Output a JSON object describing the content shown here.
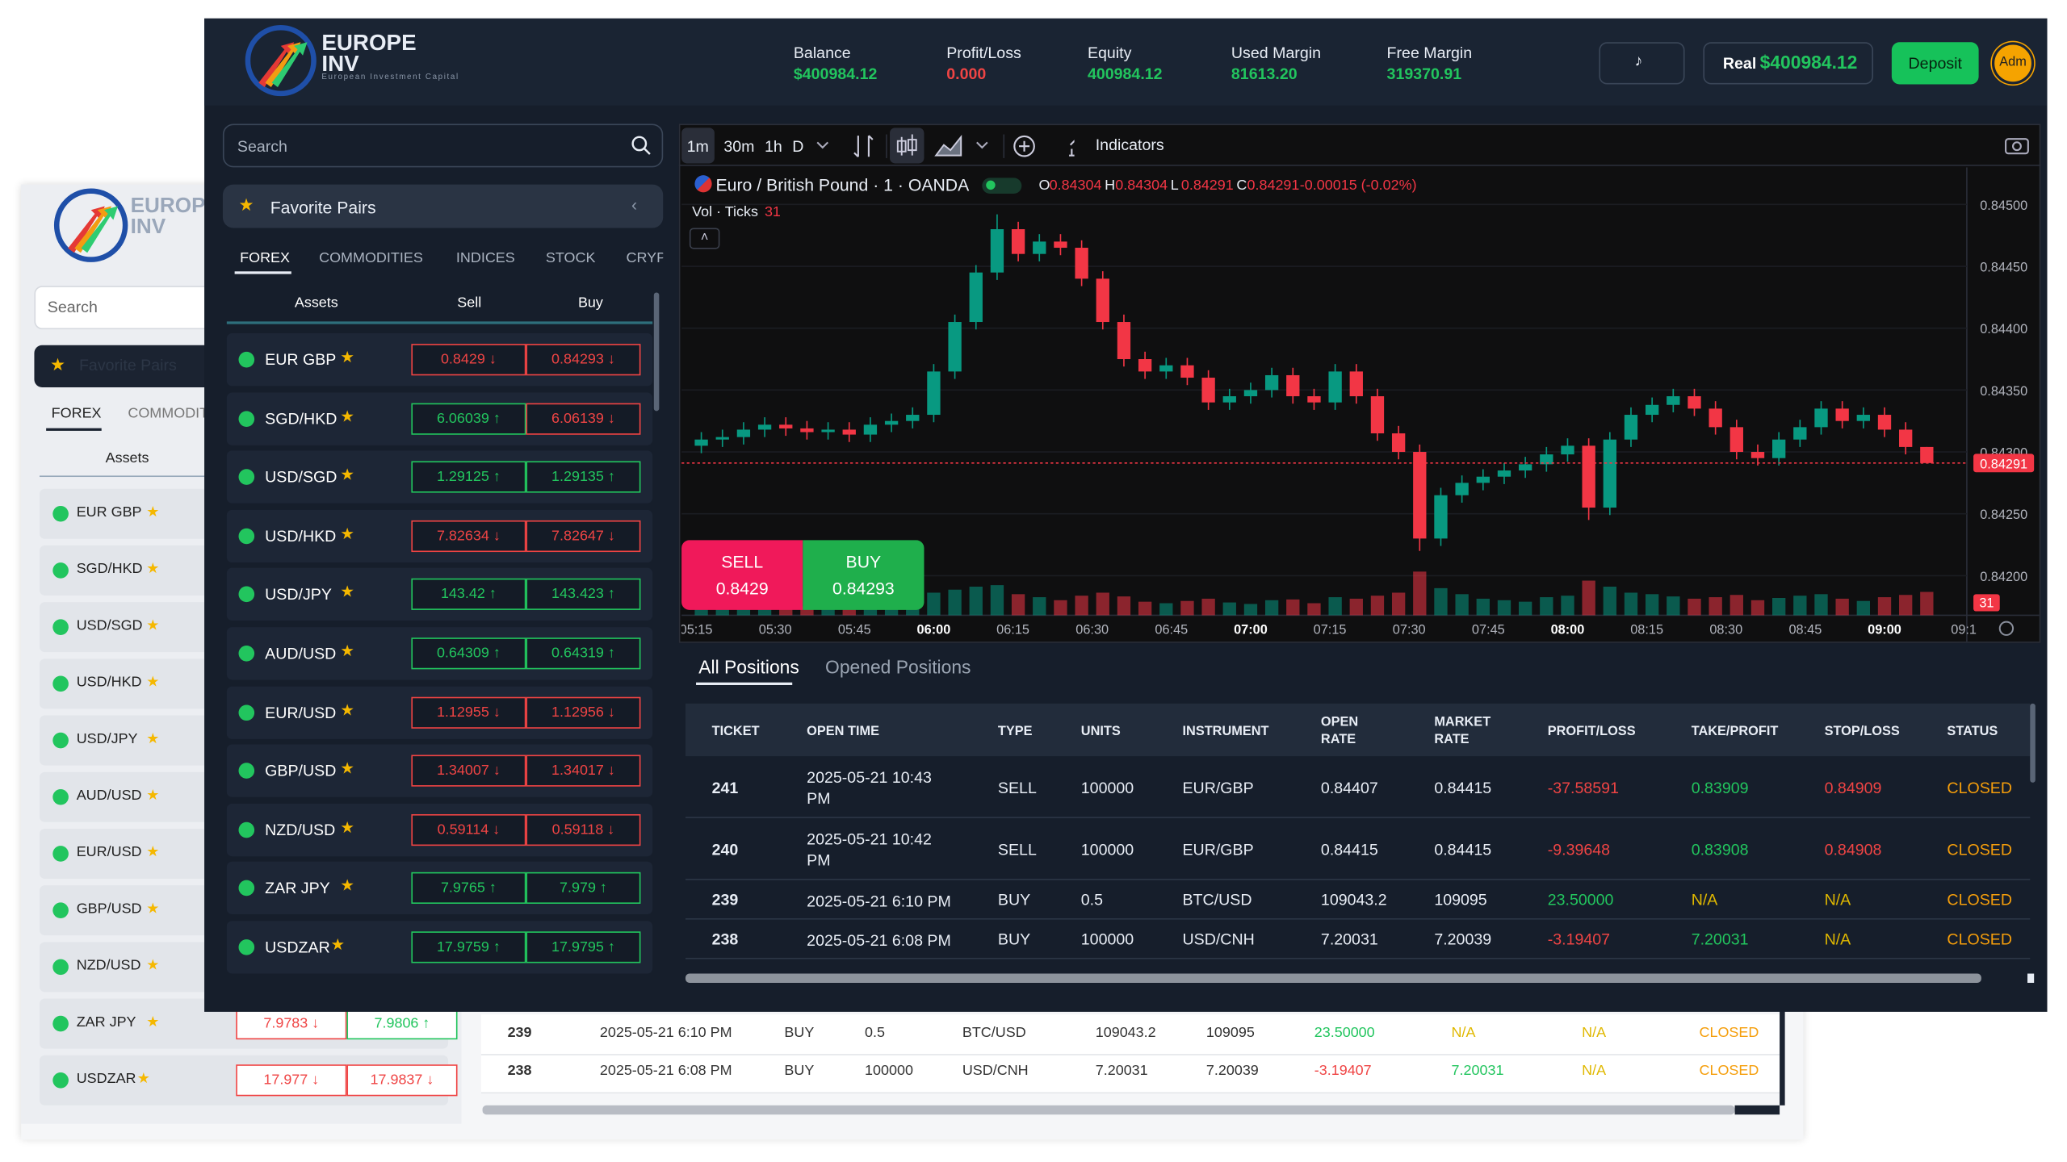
{
  "back_window": {
    "brand_lines": [
      "EUROPE",
      "INV"
    ],
    "search": "Search",
    "favorites": "Favorite Pairs",
    "tabs": [
      "FOREX",
      "COMMODIT"
    ],
    "assets_header": "Assets",
    "rows": [
      {
        "asset": "EUR GBP"
      },
      {
        "asset": "SGD/HKD"
      },
      {
        "asset": "USD/SGD"
      },
      {
        "asset": "USD/HKD"
      },
      {
        "asset": "USD/JPY"
      },
      {
        "asset": "AUD/USD"
      },
      {
        "asset": "EUR/USD"
      },
      {
        "asset": "GBP/USD"
      },
      {
        "asset": "NZD/USD"
      },
      {
        "asset": "ZAR JPY",
        "sell": "7.9783",
        "sell_dir": "down",
        "buy": "7.9806",
        "buy_dir": "up"
      },
      {
        "asset": "USDZAR",
        "sell": "17.977",
        "sell_dir": "down",
        "buy": "17.9837",
        "buy_dir": "down"
      }
    ],
    "positions": [
      [
        "239",
        "2025-05-21 6:10 PM",
        "BUY",
        "0.5",
        "BTC/USD",
        "109043.2",
        "109095",
        "23.50000",
        "N/A",
        "N/A",
        "CLOSED"
      ],
      [
        "238",
        "2025-05-21 6:08 PM",
        "BUY",
        "100000",
        "USD/CNH",
        "7.20031",
        "7.20039",
        "-3.19407",
        "7.20031",
        "N/A",
        "CLOSED"
      ]
    ]
  },
  "header": {
    "brand_lines": [
      "EUROPE",
      "INV"
    ],
    "tagline": "European Investment Capital",
    "stats": [
      {
        "label": "Balance",
        "value": "$400984.12",
        "color": "#22c55e"
      },
      {
        "label": "Profit/Loss",
        "value": "0.000",
        "color": "#ef4444"
      },
      {
        "label": "Equity",
        "value": "400984.12",
        "color": "#22c55e"
      },
      {
        "label": "Used Margin",
        "value": "81613.20",
        "color": "#22c55e"
      },
      {
        "label": "Free Margin",
        "value": "319370.91",
        "color": "#22c55e"
      }
    ],
    "account_type": "Real",
    "account_balance": "$400984.12",
    "deposit": "Deposit",
    "avatar": "Adm"
  },
  "sidebar": {
    "search": "Search",
    "favorites": "Favorite Pairs",
    "tabs": [
      "FOREX",
      "COMMODITIES",
      "INDICES",
      "STOCK",
      "CRYP"
    ],
    "columns": [
      "Assets",
      "Sell",
      "Buy"
    ],
    "rows": [
      {
        "asset": "EUR GBP",
        "sell": "0.8429",
        "sell_dir": "down",
        "buy": "0.84293",
        "buy_dir": "down"
      },
      {
        "asset": "SGD/HKD",
        "sell": "6.06039",
        "sell_dir": "up",
        "buy": "6.06139",
        "buy_dir": "down"
      },
      {
        "asset": "USD/SGD",
        "sell": "1.29125",
        "sell_dir": "up",
        "buy": "1.29135",
        "buy_dir": "up"
      },
      {
        "asset": "USD/HKD",
        "sell": "7.82634",
        "sell_dir": "down",
        "buy": "7.82647",
        "buy_dir": "down"
      },
      {
        "asset": "USD/JPY",
        "sell": "143.42",
        "sell_dir": "up",
        "buy": "143.423",
        "buy_dir": "up"
      },
      {
        "asset": "AUD/USD",
        "sell": "0.64309",
        "sell_dir": "up",
        "buy": "0.64319",
        "buy_dir": "up"
      },
      {
        "asset": "EUR/USD",
        "sell": "1.12955",
        "sell_dir": "down",
        "buy": "1.12956",
        "buy_dir": "down"
      },
      {
        "asset": "GBP/USD",
        "sell": "1.34007",
        "sell_dir": "down",
        "buy": "1.34017",
        "buy_dir": "down"
      },
      {
        "asset": "NZD/USD",
        "sell": "0.59114",
        "sell_dir": "down",
        "buy": "0.59118",
        "buy_dir": "down"
      },
      {
        "asset": "ZAR JPY",
        "sell": "7.9765",
        "sell_dir": "up",
        "buy": "7.979",
        "buy_dir": "up"
      },
      {
        "asset": "USDZAR",
        "sell": "17.9759",
        "sell_dir": "up",
        "buy": "17.9795",
        "buy_dir": "up"
      }
    ]
  },
  "chart_data": {
    "type": "candlestick",
    "intervals": [
      "1m",
      "30m",
      "1h",
      "D"
    ],
    "indicators": "Indicators",
    "symbol": "Euro / British Pound · 1 · OANDA",
    "ohlc": [
      {
        "key": "O",
        "value": "0.84304"
      },
      {
        "key": "H",
        "value": "0.84304"
      },
      {
        "key": "L",
        "value": "0.84291"
      },
      {
        "key": "C",
        "value": "0.84291"
      }
    ],
    "change": "-0.00015 (-0.02%)",
    "volume_label": "Vol · Ticks",
    "volume_value": "31",
    "sell_label": "SELL",
    "sell_price": "0.8429",
    "buy_label": "BUY",
    "buy_price": "0.84293",
    "up_color": "#089981",
    "down_color": "#f23645",
    "ylim": [
      0.84168,
      0.8453
    ],
    "yticks": [
      {
        "value": 0.845,
        "label": "0.84500"
      },
      {
        "value": 0.8445,
        "label": "0.84450"
      },
      {
        "value": 0.844,
        "label": "0.84400"
      },
      {
        "value": 0.8435,
        "label": "0.84350"
      },
      {
        "value": 0.843,
        "label": "0.84300"
      },
      {
        "value": 0.8425,
        "label": "0.84250"
      },
      {
        "value": 0.842,
        "label": "0.84200"
      }
    ],
    "last_price": {
      "value": 0.84291,
      "label": "0.84291"
    },
    "x_labels": [
      "05:15",
      "05:30",
      "05:45",
      "06:00",
      "06:15",
      "06:30",
      "06:45",
      "07:00",
      "07:15",
      "07:30",
      "07:45",
      "08:00",
      "08:15",
      "08:30",
      "08:45",
      "09:00",
      "09:1"
    ],
    "candles": [
      [
        0.84305,
        0.84316,
        0.84299,
        0.8431
      ],
      [
        0.8431,
        0.84318,
        0.84304,
        0.84312
      ],
      [
        0.84312,
        0.84324,
        0.84306,
        0.84318
      ],
      [
        0.84318,
        0.84328,
        0.84312,
        0.84322
      ],
      [
        0.84322,
        0.84328,
        0.84313,
        0.84319
      ],
      [
        0.84319,
        0.84325,
        0.8431,
        0.84316
      ],
      [
        0.84316,
        0.84324,
        0.8431,
        0.84318
      ],
      [
        0.84318,
        0.84324,
        0.84308,
        0.84314
      ],
      [
        0.84314,
        0.84328,
        0.84308,
        0.84322
      ],
      [
        0.84322,
        0.84331,
        0.84316,
        0.84325
      ],
      [
        0.84325,
        0.84336,
        0.84319,
        0.8433
      ],
      [
        0.8433,
        0.84371,
        0.84324,
        0.84365
      ],
      [
        0.84365,
        0.84411,
        0.84359,
        0.84405
      ],
      [
        0.84405,
        0.84451,
        0.84399,
        0.84445
      ],
      [
        0.84445,
        0.84492,
        0.84439,
        0.8448
      ],
      [
        0.8448,
        0.84486,
        0.84454,
        0.8446
      ],
      [
        0.8446,
        0.84476,
        0.84454,
        0.8447
      ],
      [
        0.8447,
        0.84476,
        0.84459,
        0.84465
      ],
      [
        0.84465,
        0.84471,
        0.84434,
        0.8444
      ],
      [
        0.8444,
        0.84446,
        0.84399,
        0.84405
      ],
      [
        0.84405,
        0.84411,
        0.84369,
        0.84375
      ],
      [
        0.84375,
        0.84381,
        0.84359,
        0.84365
      ],
      [
        0.84365,
        0.84376,
        0.84359,
        0.8437
      ],
      [
        0.8437,
        0.84376,
        0.84354,
        0.8436
      ],
      [
        0.8436,
        0.84366,
        0.84334,
        0.8434
      ],
      [
        0.8434,
        0.84351,
        0.84334,
        0.84345
      ],
      [
        0.84345,
        0.84356,
        0.84339,
        0.8435
      ],
      [
        0.8435,
        0.84368,
        0.84344,
        0.84362
      ],
      [
        0.84362,
        0.84368,
        0.84339,
        0.84345
      ],
      [
        0.84345,
        0.84351,
        0.84334,
        0.8434
      ],
      [
        0.8434,
        0.84371,
        0.84334,
        0.84365
      ],
      [
        0.84365,
        0.84371,
        0.84339,
        0.84345
      ],
      [
        0.84345,
        0.84351,
        0.84309,
        0.84315
      ],
      [
        0.84315,
        0.84321,
        0.84294,
        0.843
      ],
      [
        0.843,
        0.84306,
        0.8422,
        0.8423
      ],
      [
        0.8423,
        0.84271,
        0.84224,
        0.84265
      ],
      [
        0.84265,
        0.84281,
        0.84259,
        0.84275
      ],
      [
        0.84275,
        0.84286,
        0.84269,
        0.8428
      ],
      [
        0.8428,
        0.84291,
        0.84274,
        0.84285
      ],
      [
        0.84285,
        0.84296,
        0.84279,
        0.8429
      ],
      [
        0.8429,
        0.84304,
        0.84284,
        0.84298
      ],
      [
        0.84298,
        0.84311,
        0.84292,
        0.84305
      ],
      [
        0.84305,
        0.84311,
        0.84245,
        0.84255
      ],
      [
        0.84255,
        0.84316,
        0.84249,
        0.8431
      ],
      [
        0.8431,
        0.84336,
        0.84304,
        0.8433
      ],
      [
        0.8433,
        0.84344,
        0.84324,
        0.84338
      ],
      [
        0.84338,
        0.84351,
        0.84332,
        0.84345
      ],
      [
        0.84345,
        0.84351,
        0.84329,
        0.84335
      ],
      [
        0.84335,
        0.84341,
        0.84314,
        0.8432
      ],
      [
        0.8432,
        0.84326,
        0.84294,
        0.843
      ],
      [
        0.843,
        0.84306,
        0.84289,
        0.84295
      ],
      [
        0.84295,
        0.84316,
        0.84289,
        0.8431
      ],
      [
        0.8431,
        0.84326,
        0.84304,
        0.8432
      ],
      [
        0.8432,
        0.84341,
        0.84314,
        0.84335
      ],
      [
        0.84335,
        0.84341,
        0.84319,
        0.84325
      ],
      [
        0.84325,
        0.84336,
        0.84319,
        0.8433
      ],
      [
        0.8433,
        0.84336,
        0.84312,
        0.84318
      ],
      [
        0.84318,
        0.84324,
        0.84298,
        0.84304
      ],
      [
        0.84304,
        0.84304,
        0.84291,
        0.84291
      ]
    ],
    "volumes": [
      12,
      10,
      14,
      11,
      9,
      12,
      10,
      13,
      15,
      18,
      22,
      30,
      34,
      38,
      40,
      28,
      24,
      20,
      26,
      30,
      25,
      18,
      16,
      19,
      22,
      17,
      15,
      20,
      21,
      16,
      24,
      22,
      26,
      30,
      58,
      36,
      28,
      22,
      20,
      18,
      24,
      26,
      46,
      38,
      30,
      28,
      25,
      22,
      24,
      27,
      20,
      23,
      26,
      28,
      22,
      19,
      24,
      27,
      31
    ],
    "volume_lim": [
      0,
      70
    ]
  },
  "positions": {
    "tabs": [
      "All Positions",
      "Opened Positions"
    ],
    "columns": [
      "TICKET",
      "OPEN TIME",
      "TYPE",
      "UNITS",
      "INSTRUMENT",
      "OPEN RATE",
      "MARKET RATE",
      "PROFIT/LOSS",
      "TAKE/PROFIT",
      "STOP/LOSS",
      "STATUS"
    ],
    "rows": [
      [
        "241",
        "2025-05-21 10:43 PM",
        "SELL",
        "100000",
        "EUR/GBP",
        "0.84407",
        "0.84415",
        "-37.58591",
        "0.83909",
        "0.84909",
        "CLOSED"
      ],
      [
        "240",
        "2025-05-21 10:42 PM",
        "SELL",
        "100000",
        "EUR/GBP",
        "0.84415",
        "0.84415",
        "-9.39648",
        "0.83908",
        "0.84908",
        "CLOSED"
      ],
      [
        "239",
        "2025-05-21 6:10 PM",
        "BUY",
        "0.5",
        "BTC/USD",
        "109043.2",
        "109095",
        "23.50000",
        "N/A",
        "N/A",
        "CLOSED"
      ],
      [
        "238",
        "2025-05-21 6:08 PM",
        "BUY",
        "100000",
        "USD/CNH",
        "7.20031",
        "7.20039",
        "-3.19407",
        "7.20031",
        "N/A",
        "CLOSED"
      ]
    ]
  }
}
